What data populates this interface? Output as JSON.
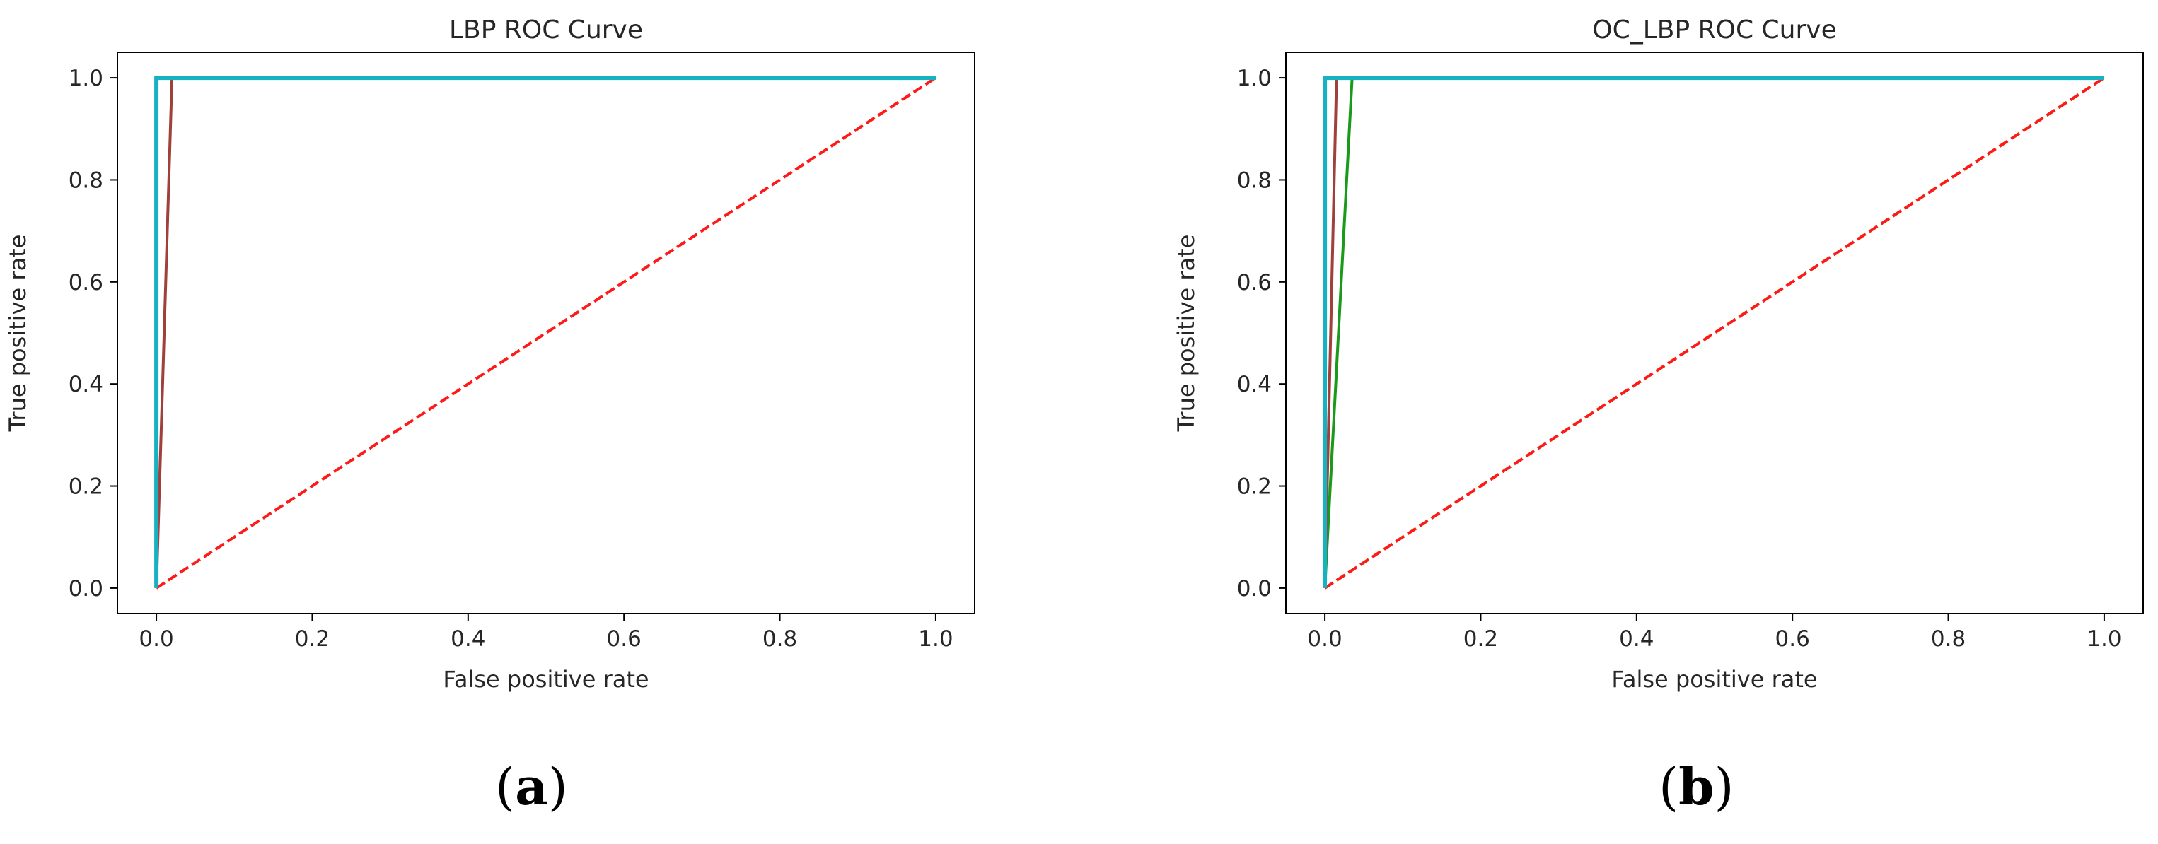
{
  "colors": {
    "axis": "#000000",
    "text": "#262626",
    "red": "#ff1a1a",
    "orange": "#ff8c1a",
    "cyan": "#17b2c2",
    "brown": "#a0403a",
    "green": "#1a9a1a",
    "olive": "#b5b51a"
  },
  "panel_labels": [
    {
      "open": "(",
      "letter": "a",
      "close": ")"
    },
    {
      "open": "(",
      "letter": "b",
      "close": ")"
    }
  ],
  "chart_data": [
    {
      "type": "line",
      "title": "LBP ROC Curve",
      "xlabel": "False positive rate",
      "ylabel": "True positive rate",
      "xlim": [
        -0.05,
        1.05
      ],
      "ylim": [
        -0.05,
        1.05
      ],
      "xticks": [
        0.0,
        0.2,
        0.4,
        0.6,
        0.8,
        1.0
      ],
      "yticks": [
        0.0,
        0.2,
        0.4,
        0.6,
        0.8,
        1.0
      ],
      "xtick_labels": [
        "0.0",
        "0.2",
        "0.4",
        "0.6",
        "0.8",
        "1.0"
      ],
      "ytick_labels": [
        "0.0",
        "0.2",
        "0.4",
        "0.6",
        "0.8",
        "1.0"
      ],
      "grid": false,
      "series": [
        {
          "color": "red",
          "dashed": true,
          "x": [
            0,
            1
          ],
          "y": [
            0,
            1
          ]
        },
        {
          "color": "brown",
          "dashed": false,
          "x": [
            0,
            0.02,
            1
          ],
          "y": [
            0,
            1,
            1
          ]
        },
        {
          "color": "cyan",
          "dashed": false,
          "x": [
            0,
            0,
            1
          ],
          "y": [
            0,
            1,
            1
          ]
        }
      ]
    },
    {
      "type": "line",
      "title": "OC_LBP ROC Curve",
      "xlabel": "False positive rate",
      "ylabel": "True positive rate",
      "xlim": [
        -0.05,
        1.05
      ],
      "ylim": [
        -0.05,
        1.05
      ],
      "xticks": [
        0.0,
        0.2,
        0.4,
        0.6,
        0.8,
        1.0
      ],
      "yticks": [
        0.0,
        0.2,
        0.4,
        0.6,
        0.8,
        1.0
      ],
      "xtick_labels": [
        "0.0",
        "0.2",
        "0.4",
        "0.6",
        "0.8",
        "1.0"
      ],
      "ytick_labels": [
        "0.0",
        "0.2",
        "0.4",
        "0.6",
        "0.8",
        "1.0"
      ],
      "grid": false,
      "series": [
        {
          "color": "olive",
          "dashed": true,
          "x": [
            0,
            1
          ],
          "y": [
            0,
            1
          ]
        },
        {
          "color": "red",
          "dashed": true,
          "x": [
            0,
            1
          ],
          "y": [
            0,
            1
          ]
        },
        {
          "color": "green",
          "dashed": false,
          "x": [
            0,
            0.035,
            1
          ],
          "y": [
            0,
            1,
            1
          ]
        },
        {
          "color": "brown",
          "dashed": false,
          "x": [
            0,
            0.015,
            1
          ],
          "y": [
            0,
            1,
            1
          ]
        },
        {
          "color": "cyan",
          "dashed": false,
          "x": [
            0,
            0,
            1
          ],
          "y": [
            0,
            1,
            1
          ]
        }
      ]
    }
  ]
}
